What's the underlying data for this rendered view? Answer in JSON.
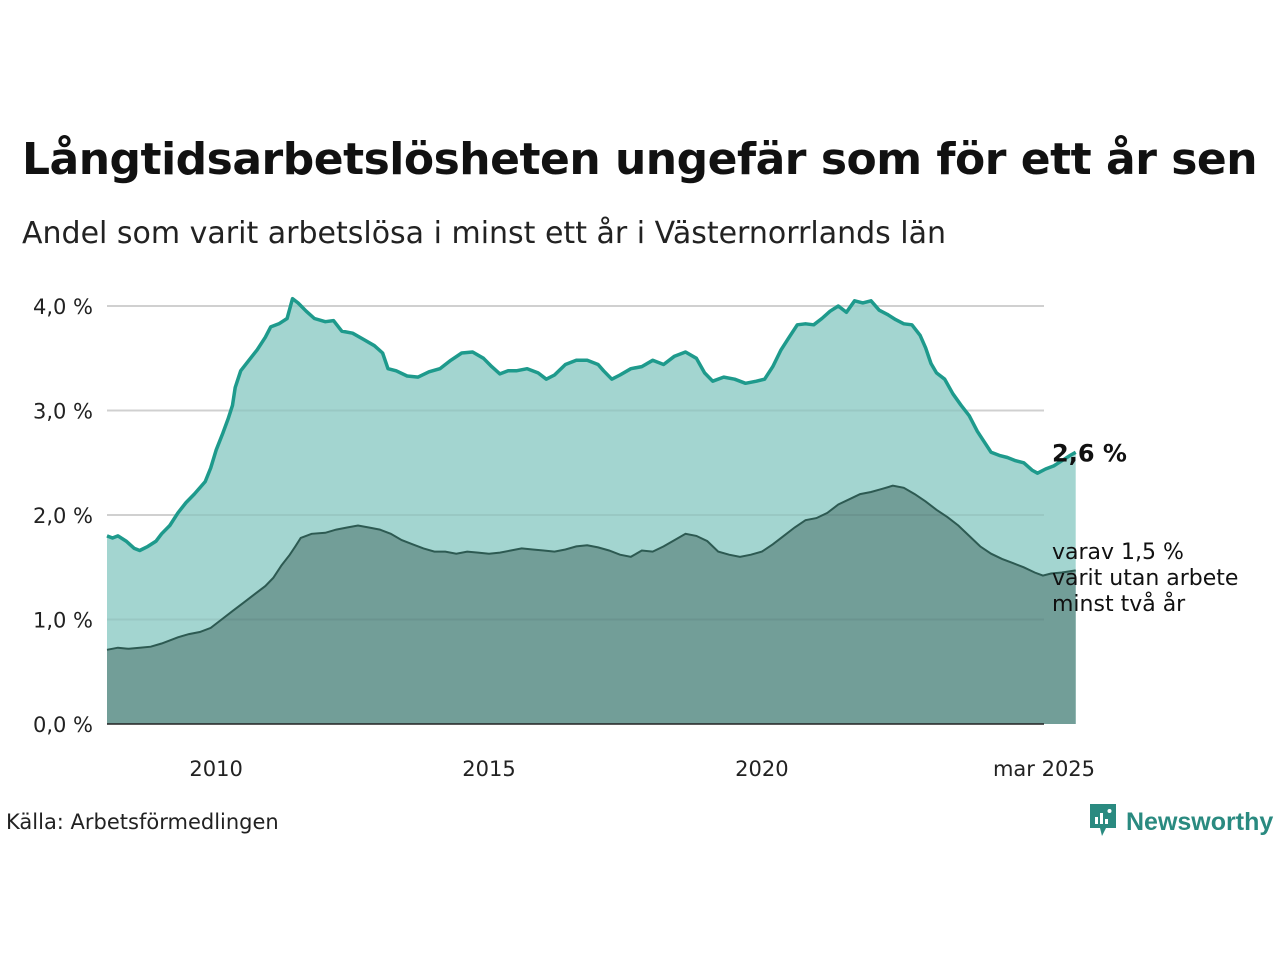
{
  "title": "Långtidsarbetslösheten ungefär som för ett år sen",
  "subtitle": "Andel som varit arbetslösa i minst ett år i Västernorrlands län",
  "source": "Källa: Arbetsförmedlingen",
  "brand": "Newsworthy",
  "colors": {
    "total_line": "#1e9a8c",
    "total_fill": "#a3d5d0",
    "sub_line": "#2d5a52",
    "sub_fill": "#729e98",
    "grid": "#dddddd"
  },
  "chart_data": {
    "type": "area",
    "x_unit": "year",
    "xlim": [
      2008.0,
      2025.17
    ],
    "ylim": [
      0,
      4
    ],
    "grid": true,
    "x_ticks": [
      {
        "value": 2010,
        "label": "2010"
      },
      {
        "value": 2015,
        "label": "2015"
      },
      {
        "value": 2020,
        "label": "2020"
      },
      {
        "value": 2025.17,
        "label": "mar 2025"
      }
    ],
    "y_ticks": [
      {
        "value": 0,
        "label": "0,0 %"
      },
      {
        "value": 1,
        "label": "1,0 %"
      },
      {
        "value": 2,
        "label": "2,0 %"
      },
      {
        "value": 3,
        "label": "3,0 %"
      },
      {
        "value": 4,
        "label": "4,0 %"
      }
    ],
    "series": [
      {
        "key": "total",
        "end_label": "2,6 %",
        "points": [
          [
            2008.0,
            1.8
          ],
          [
            2008.1,
            1.78
          ],
          [
            2008.2,
            1.8
          ],
          [
            2008.35,
            1.75
          ],
          [
            2008.5,
            1.68
          ],
          [
            2008.6,
            1.66
          ],
          [
            2008.75,
            1.7
          ],
          [
            2008.9,
            1.75
          ],
          [
            2009.0,
            1.82
          ],
          [
            2009.15,
            1.9
          ],
          [
            2009.3,
            2.02
          ],
          [
            2009.45,
            2.12
          ],
          [
            2009.6,
            2.2
          ],
          [
            2009.8,
            2.32
          ],
          [
            2009.9,
            2.45
          ],
          [
            2010.0,
            2.62
          ],
          [
            2010.12,
            2.78
          ],
          [
            2010.22,
            2.92
          ],
          [
            2010.3,
            3.05
          ],
          [
            2010.35,
            3.22
          ],
          [
            2010.45,
            3.38
          ],
          [
            2010.6,
            3.48
          ],
          [
            2010.75,
            3.58
          ],
          [
            2010.9,
            3.7
          ],
          [
            2011.0,
            3.8
          ],
          [
            2011.15,
            3.83
          ],
          [
            2011.3,
            3.88
          ],
          [
            2011.4,
            4.07
          ],
          [
            2011.5,
            4.03
          ],
          [
            2011.65,
            3.95
          ],
          [
            2011.8,
            3.88
          ],
          [
            2012.0,
            3.85
          ],
          [
            2012.15,
            3.86
          ],
          [
            2012.3,
            3.76
          ],
          [
            2012.5,
            3.74
          ],
          [
            2012.7,
            3.68
          ],
          [
            2012.9,
            3.62
          ],
          [
            2013.05,
            3.55
          ],
          [
            2013.15,
            3.4
          ],
          [
            2013.3,
            3.38
          ],
          [
            2013.5,
            3.33
          ],
          [
            2013.7,
            3.32
          ],
          [
            2013.9,
            3.37
          ],
          [
            2014.1,
            3.4
          ],
          [
            2014.3,
            3.48
          ],
          [
            2014.5,
            3.55
          ],
          [
            2014.7,
            3.56
          ],
          [
            2014.9,
            3.5
          ],
          [
            2015.05,
            3.42
          ],
          [
            2015.2,
            3.35
          ],
          [
            2015.35,
            3.38
          ],
          [
            2015.5,
            3.38
          ],
          [
            2015.7,
            3.4
          ],
          [
            2015.9,
            3.36
          ],
          [
            2016.05,
            3.3
          ],
          [
            2016.2,
            3.34
          ],
          [
            2016.4,
            3.44
          ],
          [
            2016.6,
            3.48
          ],
          [
            2016.8,
            3.48
          ],
          [
            2017.0,
            3.44
          ],
          [
            2017.1,
            3.38
          ],
          [
            2017.25,
            3.3
          ],
          [
            2017.4,
            3.34
          ],
          [
            2017.6,
            3.4
          ],
          [
            2017.8,
            3.42
          ],
          [
            2018.0,
            3.48
          ],
          [
            2018.2,
            3.44
          ],
          [
            2018.4,
            3.52
          ],
          [
            2018.6,
            3.56
          ],
          [
            2018.8,
            3.5
          ],
          [
            2018.95,
            3.36
          ],
          [
            2019.1,
            3.28
          ],
          [
            2019.3,
            3.32
          ],
          [
            2019.5,
            3.3
          ],
          [
            2019.7,
            3.26
          ],
          [
            2019.9,
            3.28
          ],
          [
            2020.05,
            3.3
          ],
          [
            2020.2,
            3.42
          ],
          [
            2020.35,
            3.58
          ],
          [
            2020.5,
            3.7
          ],
          [
            2020.65,
            3.82
          ],
          [
            2020.8,
            3.83
          ],
          [
            2020.95,
            3.82
          ],
          [
            2021.1,
            3.88
          ],
          [
            2021.25,
            3.95
          ],
          [
            2021.4,
            4.0
          ],
          [
            2021.55,
            3.94
          ],
          [
            2021.7,
            4.05
          ],
          [
            2021.85,
            4.03
          ],
          [
            2022.0,
            4.05
          ],
          [
            2022.15,
            3.96
          ],
          [
            2022.3,
            3.92
          ],
          [
            2022.45,
            3.87
          ],
          [
            2022.6,
            3.83
          ],
          [
            2022.75,
            3.82
          ],
          [
            2022.9,
            3.72
          ],
          [
            2023.0,
            3.6
          ],
          [
            2023.1,
            3.45
          ],
          [
            2023.2,
            3.36
          ],
          [
            2023.35,
            3.3
          ],
          [
            2023.5,
            3.16
          ],
          [
            2023.65,
            3.05
          ],
          [
            2023.8,
            2.95
          ],
          [
            2023.95,
            2.8
          ],
          [
            2024.1,
            2.68
          ],
          [
            2024.2,
            2.6
          ],
          [
            2024.35,
            2.57
          ],
          [
            2024.5,
            2.55
          ],
          [
            2024.65,
            2.52
          ],
          [
            2024.8,
            2.5
          ],
          [
            2024.95,
            2.43
          ],
          [
            2025.05,
            2.4
          ],
          [
            2025.2,
            2.44
          ],
          [
            2025.35,
            2.47
          ],
          [
            2025.5,
            2.52
          ],
          [
            2025.65,
            2.57
          ],
          [
            2025.75,
            2.6
          ]
        ]
      },
      {
        "key": "sub",
        "end_label_lines": [
          "varav 1,5 %",
          "varit utan arbete",
          "minst två år"
        ],
        "points": [
          [
            2008.0,
            0.71
          ],
          [
            2008.2,
            0.73
          ],
          [
            2008.4,
            0.72
          ],
          [
            2008.6,
            0.73
          ],
          [
            2008.8,
            0.74
          ],
          [
            2009.0,
            0.77
          ],
          [
            2009.15,
            0.8
          ],
          [
            2009.3,
            0.83
          ],
          [
            2009.5,
            0.86
          ],
          [
            2009.7,
            0.88
          ],
          [
            2009.9,
            0.92
          ],
          [
            2010.1,
            1.0
          ],
          [
            2010.3,
            1.08
          ],
          [
            2010.5,
            1.16
          ],
          [
            2010.7,
            1.24
          ],
          [
            2010.9,
            1.32
          ],
          [
            2011.05,
            1.4
          ],
          [
            2011.2,
            1.52
          ],
          [
            2011.35,
            1.62
          ],
          [
            2011.45,
            1.7
          ],
          [
            2011.55,
            1.78
          ],
          [
            2011.75,
            1.82
          ],
          [
            2012.0,
            1.83
          ],
          [
            2012.2,
            1.86
          ],
          [
            2012.4,
            1.88
          ],
          [
            2012.6,
            1.9
          ],
          [
            2012.8,
            1.88
          ],
          [
            2013.0,
            1.86
          ],
          [
            2013.2,
            1.82
          ],
          [
            2013.4,
            1.76
          ],
          [
            2013.6,
            1.72
          ],
          [
            2013.8,
            1.68
          ],
          [
            2014.0,
            1.65
          ],
          [
            2014.2,
            1.65
          ],
          [
            2014.4,
            1.63
          ],
          [
            2014.6,
            1.65
          ],
          [
            2014.8,
            1.64
          ],
          [
            2015.0,
            1.63
          ],
          [
            2015.2,
            1.64
          ],
          [
            2015.4,
            1.66
          ],
          [
            2015.6,
            1.68
          ],
          [
            2015.8,
            1.67
          ],
          [
            2016.0,
            1.66
          ],
          [
            2016.2,
            1.65
          ],
          [
            2016.4,
            1.67
          ],
          [
            2016.6,
            1.7
          ],
          [
            2016.8,
            1.71
          ],
          [
            2017.0,
            1.69
          ],
          [
            2017.2,
            1.66
          ],
          [
            2017.4,
            1.62
          ],
          [
            2017.6,
            1.6
          ],
          [
            2017.8,
            1.66
          ],
          [
            2018.0,
            1.65
          ],
          [
            2018.2,
            1.7
          ],
          [
            2018.4,
            1.76
          ],
          [
            2018.6,
            1.82
          ],
          [
            2018.8,
            1.8
          ],
          [
            2019.0,
            1.75
          ],
          [
            2019.2,
            1.65
          ],
          [
            2019.4,
            1.62
          ],
          [
            2019.6,
            1.6
          ],
          [
            2019.8,
            1.62
          ],
          [
            2020.0,
            1.65
          ],
          [
            2020.2,
            1.72
          ],
          [
            2020.4,
            1.8
          ],
          [
            2020.6,
            1.88
          ],
          [
            2020.8,
            1.95
          ],
          [
            2021.0,
            1.97
          ],
          [
            2021.2,
            2.02
          ],
          [
            2021.4,
            2.1
          ],
          [
            2021.6,
            2.15
          ],
          [
            2021.8,
            2.2
          ],
          [
            2022.0,
            2.22
          ],
          [
            2022.2,
            2.25
          ],
          [
            2022.4,
            2.28
          ],
          [
            2022.6,
            2.26
          ],
          [
            2022.8,
            2.2
          ],
          [
            2023.0,
            2.13
          ],
          [
            2023.2,
            2.05
          ],
          [
            2023.4,
            1.98
          ],
          [
            2023.6,
            1.9
          ],
          [
            2023.8,
            1.8
          ],
          [
            2024.0,
            1.7
          ],
          [
            2024.2,
            1.63
          ],
          [
            2024.4,
            1.58
          ],
          [
            2024.6,
            1.54
          ],
          [
            2024.8,
            1.5
          ],
          [
            2025.0,
            1.45
          ],
          [
            2025.15,
            1.42
          ],
          [
            2025.3,
            1.44
          ],
          [
            2025.5,
            1.45
          ],
          [
            2025.75,
            1.47
          ]
        ]
      }
    ]
  }
}
